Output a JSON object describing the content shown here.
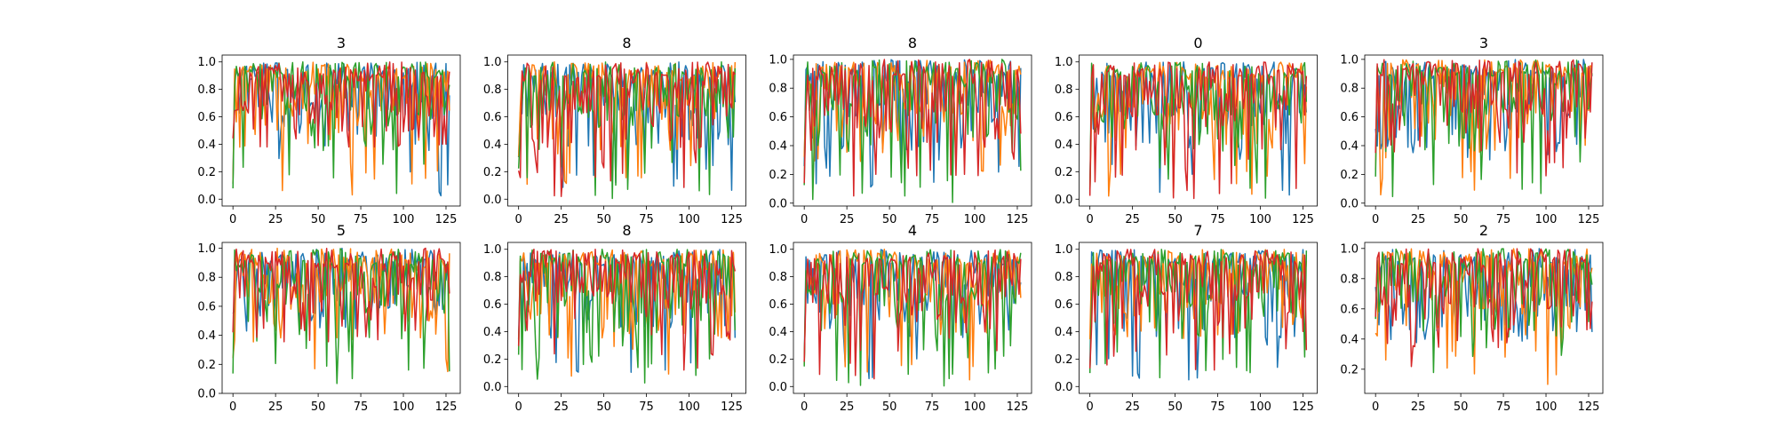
{
  "chart_data": [
    {
      "type": "line",
      "title": "3",
      "xticks": [
        0,
        25,
        50,
        75,
        100,
        125
      ],
      "yticks": [
        0.0,
        0.2,
        0.4,
        0.6,
        0.8,
        1.0
      ],
      "xlim": [
        -6.35,
        133.35
      ],
      "ylim": [
        -0.05,
        1.05
      ],
      "x_count": 128,
      "seed": 11,
      "series": [
        {
          "color": "#1f77b4",
          "min": 0.0
        },
        {
          "color": "#ff7f0e",
          "min": 0.02
        },
        {
          "color": "#2ca02c",
          "min": 0.0
        },
        {
          "color": "#d62728",
          "min": 0.38
        }
      ]
    },
    {
      "type": "line",
      "title": "8",
      "xticks": [
        0,
        25,
        50,
        75,
        100,
        125
      ],
      "yticks": [
        0.0,
        0.2,
        0.4,
        0.6,
        0.8,
        1.0
      ],
      "xlim": [
        -6.35,
        133.35
      ],
      "ylim": [
        -0.05,
        1.05
      ],
      "x_count": 128,
      "seed": 23,
      "series": [
        {
          "color": "#1f77b4",
          "min": 0.05
        },
        {
          "color": "#ff7f0e",
          "min": 0.07
        },
        {
          "color": "#2ca02c",
          "min": 0.0
        },
        {
          "color": "#d62728",
          "min": 0.0
        }
      ]
    },
    {
      "type": "line",
      "title": "8",
      "xticks": [
        0,
        25,
        50,
        75,
        100,
        125
      ],
      "yticks": [
        0.0,
        0.2,
        0.4,
        0.6,
        0.8,
        1.0
      ],
      "xlim": [
        -6.35,
        133.35
      ],
      "ylim": [
        -0.02,
        1.03
      ],
      "x_count": 128,
      "seed": 37,
      "series": [
        {
          "color": "#1f77b4",
          "min": 0.1
        },
        {
          "color": "#ff7f0e",
          "min": 0.18
        },
        {
          "color": "#2ca02c",
          "min": 0.0
        },
        {
          "color": "#d62728",
          "min": 0.03
        }
      ]
    },
    {
      "type": "line",
      "title": "0",
      "xticks": [
        0,
        25,
        50,
        75,
        100,
        125
      ],
      "yticks": [
        0.0,
        0.2,
        0.4,
        0.6,
        0.8,
        1.0
      ],
      "xlim": [
        -6.35,
        133.35
      ],
      "ylim": [
        -0.05,
        1.05
      ],
      "x_count": 128,
      "seed": 41,
      "series": [
        {
          "color": "#1f77b4",
          "min": 0.0
        },
        {
          "color": "#ff7f0e",
          "min": 0.0
        },
        {
          "color": "#2ca02c",
          "min": 0.0
        },
        {
          "color": "#d62728",
          "min": 0.0
        }
      ]
    },
    {
      "type": "line",
      "title": "3",
      "xticks": [
        0,
        25,
        50,
        75,
        100,
        125
      ],
      "yticks": [
        0.0,
        0.2,
        0.4,
        0.6,
        0.8,
        1.0
      ],
      "xlim": [
        -6.35,
        133.35
      ],
      "ylim": [
        -0.02,
        1.03
      ],
      "x_count": 128,
      "seed": 53,
      "series": [
        {
          "color": "#1f77b4",
          "min": 0.3
        },
        {
          "color": "#ff7f0e",
          "min": 0.03
        },
        {
          "color": "#2ca02c",
          "min": 0.0
        },
        {
          "color": "#d62728",
          "min": 0.18
        }
      ]
    },
    {
      "type": "line",
      "title": "5",
      "xticks": [
        0,
        25,
        50,
        75,
        100,
        125
      ],
      "yticks": [
        0.0,
        0.2,
        0.4,
        0.6,
        0.8,
        1.0
      ],
      "xlim": [
        -6.35,
        133.35
      ],
      "ylim": [
        0.0,
        1.04
      ],
      "x_count": 128,
      "seed": 67,
      "series": [
        {
          "color": "#1f77b4",
          "min": 0.43
        },
        {
          "color": "#ff7f0e",
          "min": 0.14
        },
        {
          "color": "#2ca02c",
          "min": 0.05
        },
        {
          "color": "#d62728",
          "min": 0.35
        }
      ]
    },
    {
      "type": "line",
      "title": "8",
      "xticks": [
        0,
        25,
        50,
        75,
        100,
        125
      ],
      "yticks": [
        0.0,
        0.2,
        0.4,
        0.6,
        0.8,
        1.0
      ],
      "xlim": [
        -6.35,
        133.35
      ],
      "ylim": [
        -0.05,
        1.05
      ],
      "x_count": 128,
      "seed": 79,
      "series": [
        {
          "color": "#1f77b4",
          "min": 0.08
        },
        {
          "color": "#ff7f0e",
          "min": 0.02
        },
        {
          "color": "#2ca02c",
          "min": 0.0
        },
        {
          "color": "#d62728",
          "min": 0.08
        }
      ]
    },
    {
      "type": "line",
      "title": "4",
      "xticks": [
        0,
        25,
        50,
        75,
        100,
        125
      ],
      "yticks": [
        0.0,
        0.2,
        0.4,
        0.6,
        0.8,
        1.0
      ],
      "xlim": [
        -6.35,
        133.35
      ],
      "ylim": [
        -0.05,
        1.05
      ],
      "x_count": 128,
      "seed": 83,
      "series": [
        {
          "color": "#1f77b4",
          "min": 0.0
        },
        {
          "color": "#ff7f0e",
          "min": 0.0
        },
        {
          "color": "#2ca02c",
          "min": 0.0
        },
        {
          "color": "#d62728",
          "min": 0.05
        }
      ]
    },
    {
      "type": "line",
      "title": "7",
      "xticks": [
        0,
        25,
        50,
        75,
        100,
        125
      ],
      "yticks": [
        0.0,
        0.2,
        0.4,
        0.6,
        0.8,
        1.0
      ],
      "xlim": [
        -6.35,
        133.35
      ],
      "ylim": [
        -0.05,
        1.05
      ],
      "x_count": 128,
      "seed": 97,
      "series": [
        {
          "color": "#1f77b4",
          "min": 0.02
        },
        {
          "color": "#ff7f0e",
          "min": 0.28
        },
        {
          "color": "#2ca02c",
          "min": 0.05
        },
        {
          "color": "#d62728",
          "min": 0.1
        }
      ]
    },
    {
      "type": "line",
      "title": "2",
      "xticks": [
        0,
        25,
        50,
        75,
        100,
        125
      ],
      "yticks": [
        0.2,
        0.4,
        0.6,
        0.8,
        1.0
      ],
      "xlim": [
        -6.35,
        133.35
      ],
      "ylim": [
        0.04,
        1.04
      ],
      "x_count": 128,
      "seed": 101,
      "series": [
        {
          "color": "#1f77b4",
          "min": 0.35
        },
        {
          "color": "#ff7f0e",
          "min": 0.06
        },
        {
          "color": "#2ca02c",
          "min": 0.17
        },
        {
          "color": "#d62728",
          "min": 0.2
        }
      ]
    }
  ]
}
